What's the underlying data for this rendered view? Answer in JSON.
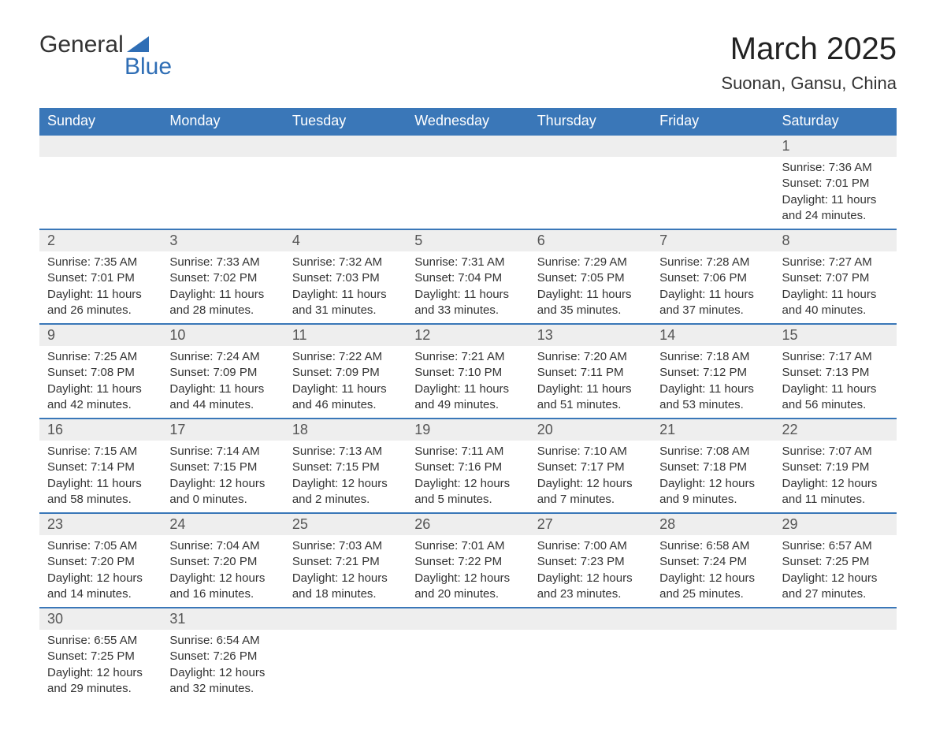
{
  "brand": {
    "name_part1": "General",
    "name_part2": "Blue",
    "accent_color": "#2f6eb5"
  },
  "title": "March 2025",
  "location": "Suonan, Gansu, China",
  "colors": {
    "header_bg": "#3a77b8",
    "header_text": "#ffffff",
    "daynum_bg": "#eeeeee",
    "row_border": "#3a77b8",
    "body_text": "#333333"
  },
  "weekday_labels": [
    "Sunday",
    "Monday",
    "Tuesday",
    "Wednesday",
    "Thursday",
    "Friday",
    "Saturday"
  ],
  "weeks": [
    [
      null,
      null,
      null,
      null,
      null,
      null,
      {
        "n": "1",
        "sunrise": "Sunrise: 7:36 AM",
        "sunset": "Sunset: 7:01 PM",
        "dl1": "Daylight: 11 hours",
        "dl2": "and 24 minutes."
      }
    ],
    [
      {
        "n": "2",
        "sunrise": "Sunrise: 7:35 AM",
        "sunset": "Sunset: 7:01 PM",
        "dl1": "Daylight: 11 hours",
        "dl2": "and 26 minutes."
      },
      {
        "n": "3",
        "sunrise": "Sunrise: 7:33 AM",
        "sunset": "Sunset: 7:02 PM",
        "dl1": "Daylight: 11 hours",
        "dl2": "and 28 minutes."
      },
      {
        "n": "4",
        "sunrise": "Sunrise: 7:32 AM",
        "sunset": "Sunset: 7:03 PM",
        "dl1": "Daylight: 11 hours",
        "dl2": "and 31 minutes."
      },
      {
        "n": "5",
        "sunrise": "Sunrise: 7:31 AM",
        "sunset": "Sunset: 7:04 PM",
        "dl1": "Daylight: 11 hours",
        "dl2": "and 33 minutes."
      },
      {
        "n": "6",
        "sunrise": "Sunrise: 7:29 AM",
        "sunset": "Sunset: 7:05 PM",
        "dl1": "Daylight: 11 hours",
        "dl2": "and 35 minutes."
      },
      {
        "n": "7",
        "sunrise": "Sunrise: 7:28 AM",
        "sunset": "Sunset: 7:06 PM",
        "dl1": "Daylight: 11 hours",
        "dl2": "and 37 minutes."
      },
      {
        "n": "8",
        "sunrise": "Sunrise: 7:27 AM",
        "sunset": "Sunset: 7:07 PM",
        "dl1": "Daylight: 11 hours",
        "dl2": "and 40 minutes."
      }
    ],
    [
      {
        "n": "9",
        "sunrise": "Sunrise: 7:25 AM",
        "sunset": "Sunset: 7:08 PM",
        "dl1": "Daylight: 11 hours",
        "dl2": "and 42 minutes."
      },
      {
        "n": "10",
        "sunrise": "Sunrise: 7:24 AM",
        "sunset": "Sunset: 7:09 PM",
        "dl1": "Daylight: 11 hours",
        "dl2": "and 44 minutes."
      },
      {
        "n": "11",
        "sunrise": "Sunrise: 7:22 AM",
        "sunset": "Sunset: 7:09 PM",
        "dl1": "Daylight: 11 hours",
        "dl2": "and 46 minutes."
      },
      {
        "n": "12",
        "sunrise": "Sunrise: 7:21 AM",
        "sunset": "Sunset: 7:10 PM",
        "dl1": "Daylight: 11 hours",
        "dl2": "and 49 minutes."
      },
      {
        "n": "13",
        "sunrise": "Sunrise: 7:20 AM",
        "sunset": "Sunset: 7:11 PM",
        "dl1": "Daylight: 11 hours",
        "dl2": "and 51 minutes."
      },
      {
        "n": "14",
        "sunrise": "Sunrise: 7:18 AM",
        "sunset": "Sunset: 7:12 PM",
        "dl1": "Daylight: 11 hours",
        "dl2": "and 53 minutes."
      },
      {
        "n": "15",
        "sunrise": "Sunrise: 7:17 AM",
        "sunset": "Sunset: 7:13 PM",
        "dl1": "Daylight: 11 hours",
        "dl2": "and 56 minutes."
      }
    ],
    [
      {
        "n": "16",
        "sunrise": "Sunrise: 7:15 AM",
        "sunset": "Sunset: 7:14 PM",
        "dl1": "Daylight: 11 hours",
        "dl2": "and 58 minutes."
      },
      {
        "n": "17",
        "sunrise": "Sunrise: 7:14 AM",
        "sunset": "Sunset: 7:15 PM",
        "dl1": "Daylight: 12 hours",
        "dl2": "and 0 minutes."
      },
      {
        "n": "18",
        "sunrise": "Sunrise: 7:13 AM",
        "sunset": "Sunset: 7:15 PM",
        "dl1": "Daylight: 12 hours",
        "dl2": "and 2 minutes."
      },
      {
        "n": "19",
        "sunrise": "Sunrise: 7:11 AM",
        "sunset": "Sunset: 7:16 PM",
        "dl1": "Daylight: 12 hours",
        "dl2": "and 5 minutes."
      },
      {
        "n": "20",
        "sunrise": "Sunrise: 7:10 AM",
        "sunset": "Sunset: 7:17 PM",
        "dl1": "Daylight: 12 hours",
        "dl2": "and 7 minutes."
      },
      {
        "n": "21",
        "sunrise": "Sunrise: 7:08 AM",
        "sunset": "Sunset: 7:18 PM",
        "dl1": "Daylight: 12 hours",
        "dl2": "and 9 minutes."
      },
      {
        "n": "22",
        "sunrise": "Sunrise: 7:07 AM",
        "sunset": "Sunset: 7:19 PM",
        "dl1": "Daylight: 12 hours",
        "dl2": "and 11 minutes."
      }
    ],
    [
      {
        "n": "23",
        "sunrise": "Sunrise: 7:05 AM",
        "sunset": "Sunset: 7:20 PM",
        "dl1": "Daylight: 12 hours",
        "dl2": "and 14 minutes."
      },
      {
        "n": "24",
        "sunrise": "Sunrise: 7:04 AM",
        "sunset": "Sunset: 7:20 PM",
        "dl1": "Daylight: 12 hours",
        "dl2": "and 16 minutes."
      },
      {
        "n": "25",
        "sunrise": "Sunrise: 7:03 AM",
        "sunset": "Sunset: 7:21 PM",
        "dl1": "Daylight: 12 hours",
        "dl2": "and 18 minutes."
      },
      {
        "n": "26",
        "sunrise": "Sunrise: 7:01 AM",
        "sunset": "Sunset: 7:22 PM",
        "dl1": "Daylight: 12 hours",
        "dl2": "and 20 minutes."
      },
      {
        "n": "27",
        "sunrise": "Sunrise: 7:00 AM",
        "sunset": "Sunset: 7:23 PM",
        "dl1": "Daylight: 12 hours",
        "dl2": "and 23 minutes."
      },
      {
        "n": "28",
        "sunrise": "Sunrise: 6:58 AM",
        "sunset": "Sunset: 7:24 PM",
        "dl1": "Daylight: 12 hours",
        "dl2": "and 25 minutes."
      },
      {
        "n": "29",
        "sunrise": "Sunrise: 6:57 AM",
        "sunset": "Sunset: 7:25 PM",
        "dl1": "Daylight: 12 hours",
        "dl2": "and 27 minutes."
      }
    ],
    [
      {
        "n": "30",
        "sunrise": "Sunrise: 6:55 AM",
        "sunset": "Sunset: 7:25 PM",
        "dl1": "Daylight: 12 hours",
        "dl2": "and 29 minutes."
      },
      {
        "n": "31",
        "sunrise": "Sunrise: 6:54 AM",
        "sunset": "Sunset: 7:26 PM",
        "dl1": "Daylight: 12 hours",
        "dl2": "and 32 minutes."
      },
      null,
      null,
      null,
      null,
      null
    ]
  ]
}
